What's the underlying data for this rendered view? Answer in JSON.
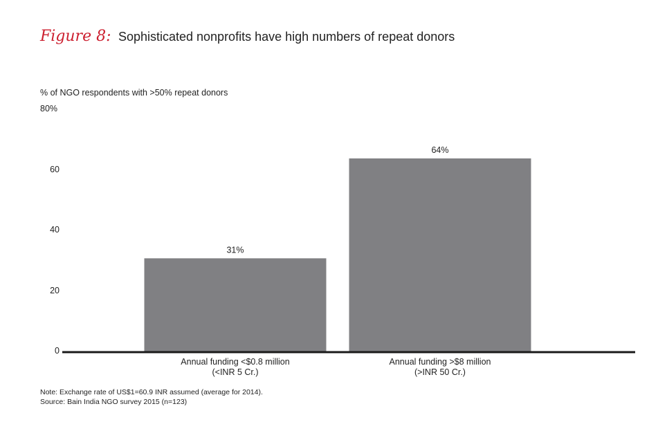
{
  "figure": {
    "label": "Figure 8:",
    "title": "Sophisticated nonprofits have high numbers of repeat donors"
  },
  "chart_data": {
    "type": "bar",
    "ylabel": "% of NGO respondents with >50% repeat donors",
    "ylim": [
      0,
      80
    ],
    "yticks": [
      {
        "value": 80,
        "label": "80%"
      },
      {
        "value": 60,
        "label": "60"
      },
      {
        "value": 40,
        "label": "40"
      },
      {
        "value": 20,
        "label": "20"
      },
      {
        "value": 0,
        "label": "0"
      }
    ],
    "categories": [
      [
        "Annual funding <$0.8 million",
        "(<INR 5 Cr.)"
      ],
      [
        "Annual funding >$8 million",
        "(>INR 50 Cr.)"
      ]
    ],
    "values": [
      31,
      64
    ],
    "data_labels": [
      "31%",
      "64%"
    ],
    "bar_color": "#808083",
    "axis_color": "#1a1a1a"
  },
  "notes": {
    "note": "Note: Exchange rate of US$1=60.9 INR assumed (average for 2014).",
    "source": "Source: Bain India NGO survey 2015 (n=123)"
  }
}
